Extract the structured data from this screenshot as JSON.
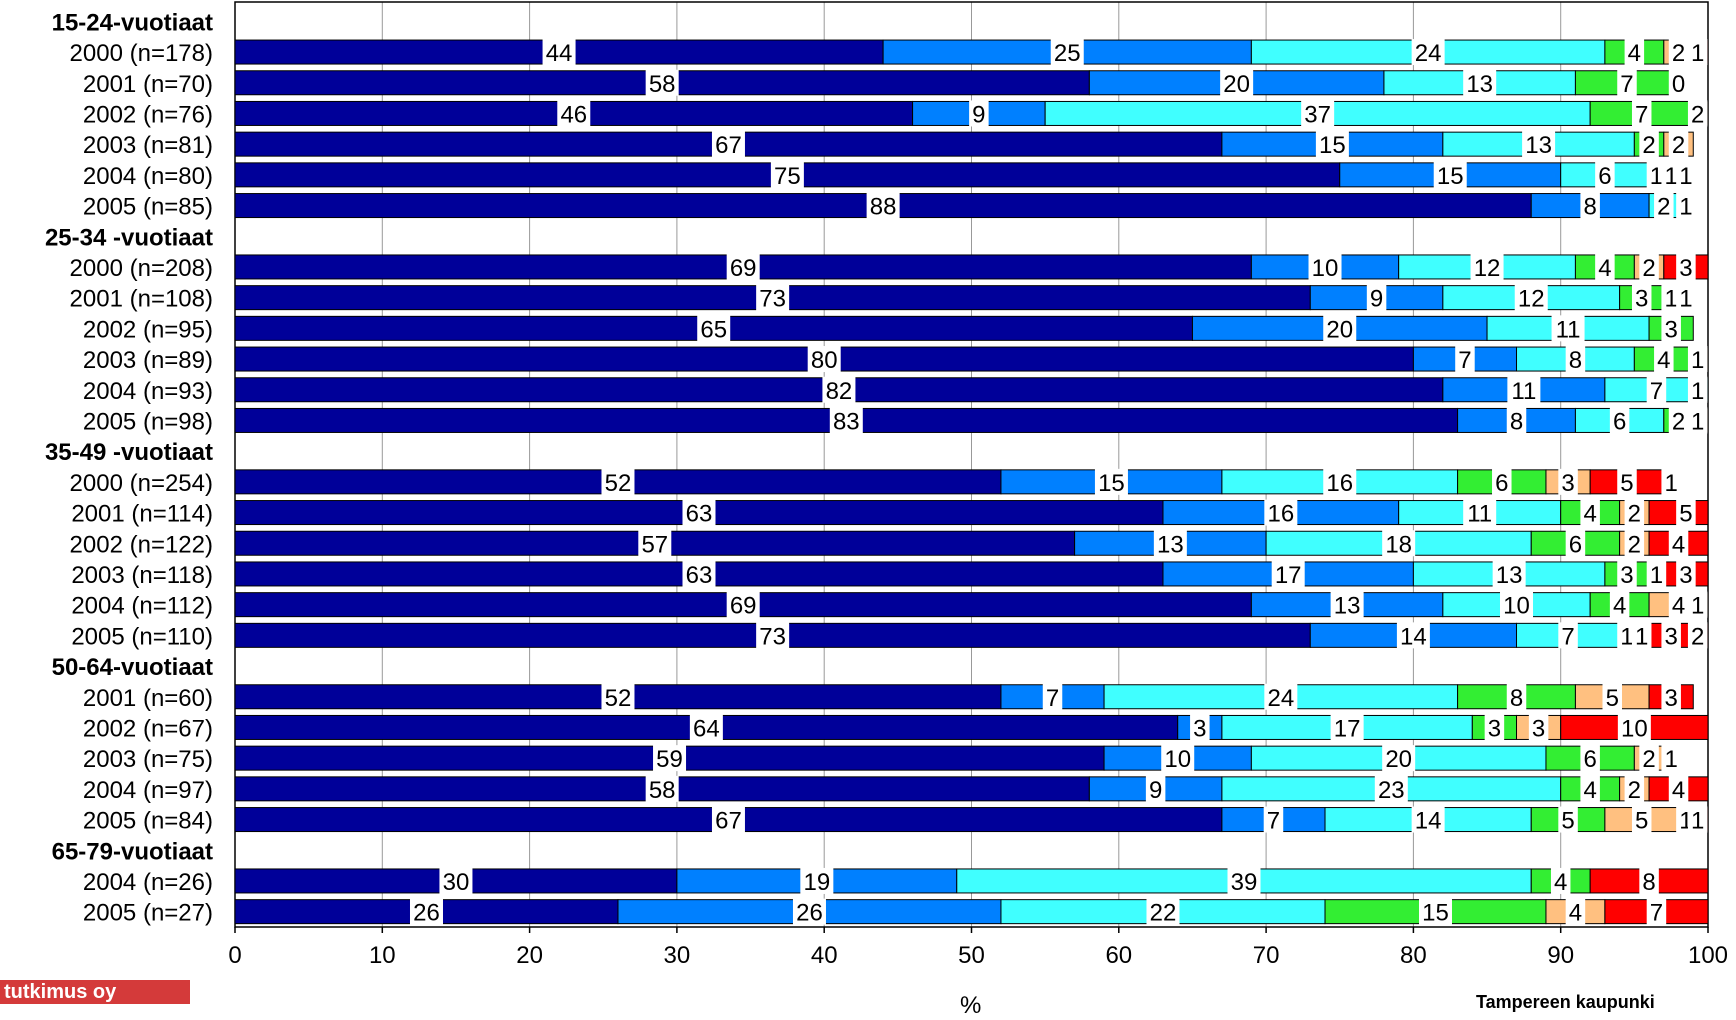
{
  "chart_data": {
    "type": "bar",
    "stacked": true,
    "orientation": "horizontal",
    "xlabel": "%",
    "xlim": [
      0,
      100
    ],
    "xticks": [
      0,
      10,
      20,
      30,
      40,
      50,
      60,
      70,
      80,
      90,
      100
    ],
    "grid": true,
    "colors": [
      "#000099",
      "#0080ff",
      "#40ffff",
      "#33ee33",
      "#ffc080",
      "#ff0000"
    ],
    "groups": [
      {
        "name": "15-24-vuotiaat",
        "rows": [
          {
            "label": "2000 (n=178)",
            "values": [
              44,
              25,
              24,
              4,
              2,
              1
            ],
            "labels": [
              "44",
              "25",
              "24",
              "4",
              "2",
              "1"
            ]
          },
          {
            "label": "2001 (n=70)",
            "values": [
              58,
              20,
              13,
              7,
              0,
              0
            ],
            "labels": [
              "58",
              "20",
              "13",
              "7",
              "0",
              ""
            ]
          },
          {
            "label": "2002 (n=76)",
            "values": [
              46,
              9,
              37,
              7,
              2,
              0
            ],
            "labels": [
              "46",
              "9",
              "37",
              "7",
              "2",
              ""
            ]
          },
          {
            "label": "2003 (n=81)",
            "values": [
              67,
              15,
              13,
              2,
              2,
              0
            ],
            "labels": [
              "67",
              "15",
              "13",
              "2",
              "2",
              ""
            ]
          },
          {
            "label": "2004 (n=80)",
            "values": [
              75,
              15,
              6,
              1,
              1,
              1
            ],
            "labels": [
              "75",
              "15",
              "6",
              "1",
              "1",
              "1"
            ]
          },
          {
            "label": "2005 (n=85)",
            "values": [
              88,
              8,
              2,
              1,
              0,
              0
            ],
            "labels": [
              "88",
              "8",
              "2",
              "1",
              "",
              ""
            ]
          }
        ]
      },
      {
        "name": "25-34 -vuotiaat",
        "rows": [
          {
            "label": "2000 (n=208)",
            "values": [
              69,
              10,
              12,
              4,
              2,
              3
            ],
            "labels": [
              "69",
              "10",
              "12",
              "4",
              "2",
              "3"
            ]
          },
          {
            "label": "2001 (n=108)",
            "values": [
              73,
              9,
              12,
              3,
              1,
              1
            ],
            "labels": [
              "73",
              "9",
              "12",
              "3",
              "1",
              "1"
            ]
          },
          {
            "label": "2002 (n=95)",
            "values": [
              65,
              20,
              11,
              3,
              0,
              0
            ],
            "labels": [
              "65",
              "20",
              "11",
              "3",
              "",
              ""
            ]
          },
          {
            "label": "2003 (n=89)",
            "values": [
              80,
              7,
              8,
              4,
              1,
              0
            ],
            "labels": [
              "80",
              "7",
              "8",
              "4",
              "1",
              ""
            ]
          },
          {
            "label": "2004 (n=93)",
            "values": [
              82,
              11,
              7,
              1,
              0,
              0
            ],
            "labels": [
              "82",
              "11",
              "7",
              "1",
              "",
              ""
            ]
          },
          {
            "label": "2005 (n=98)",
            "values": [
              83,
              8,
              6,
              2,
              1,
              0
            ],
            "labels": [
              "83",
              "8",
              "6",
              "2",
              "1",
              ""
            ]
          }
        ]
      },
      {
        "name": "35-49 -vuotiaat",
        "rows": [
          {
            "label": "2000 (n=254)",
            "values": [
              52,
              15,
              16,
              6,
              3,
              5,
              1
            ],
            "labels": [
              "52",
              "15",
              "16",
              "6",
              "3",
              "5",
              "1"
            ]
          },
          {
            "label": "2001 (n=114)",
            "values": [
              63,
              16,
              11,
              4,
              2,
              5
            ],
            "labels": [
              "63",
              "16",
              "11",
              "4",
              "2",
              "5"
            ]
          },
          {
            "label": "2002 (n=122)",
            "values": [
              57,
              13,
              18,
              6,
              2,
              4
            ],
            "labels": [
              "57",
              "13",
              "18",
              "6",
              "2",
              "4"
            ]
          },
          {
            "label": "2003 (n=118)",
            "values": [
              63,
              17,
              13,
              3,
              1,
              3
            ],
            "labels": [
              "63",
              "17",
              "13",
              "3",
              "1",
              "3"
            ]
          },
          {
            "label": "2004 (n=112)",
            "values": [
              69,
              13,
              10,
              4,
              4,
              1
            ],
            "labels": [
              "69",
              "13",
              "10",
              "4",
              "4",
              "1"
            ]
          },
          {
            "label": "2005 (n=110)",
            "values": [
              73,
              14,
              7,
              1,
              1,
              3,
              2
            ],
            "labels": [
              "73",
              "14",
              "7",
              "1",
              "1",
              "3",
              "2"
            ]
          }
        ]
      },
      {
        "name": "50-64-vuotiaat",
        "rows": [
          {
            "label": "2001 (n=60)",
            "values": [
              52,
              7,
              24,
              8,
              5,
              3
            ],
            "labels": [
              "52",
              "7",
              "24",
              "8",
              "5",
              "3"
            ]
          },
          {
            "label": "2002 (n=67)",
            "values": [
              64,
              3,
              17,
              3,
              3,
              10
            ],
            "labels": [
              "64",
              "3",
              "17",
              "3",
              "3",
              "10"
            ]
          },
          {
            "label": "2003 (n=75)",
            "values": [
              59,
              10,
              20,
              6,
              2,
              1
            ],
            "labels": [
              "59",
              "10",
              "20",
              "6",
              "2",
              "1"
            ]
          },
          {
            "label": "2004 (n=97)",
            "values": [
              58,
              9,
              23,
              4,
              2,
              4
            ],
            "labels": [
              "58",
              "9",
              "23",
              "4",
              "2",
              "4"
            ]
          },
          {
            "label": "2005 (n=84)",
            "values": [
              67,
              7,
              14,
              5,
              5,
              1,
              1
            ],
            "labels": [
              "67",
              "7",
              "14",
              "5",
              "5",
              "1",
              "1"
            ]
          }
        ]
      },
      {
        "name": "65-79-vuotiaat",
        "rows": [
          {
            "label": "2004 (n=26)",
            "values": [
              30,
              19,
              39,
              4,
              0,
              8
            ],
            "labels": [
              "30",
              "19",
              "39",
              "4",
              "",
              "8"
            ]
          },
          {
            "label": "2005 (n=27)",
            "values": [
              26,
              26,
              22,
              15,
              4,
              7
            ],
            "labels": [
              "26",
              "26",
              "22",
              "15",
              "4",
              "7"
            ]
          }
        ]
      }
    ]
  },
  "logo_text": "tutkimus oy",
  "source_text": "Tampereen kaupunki"
}
